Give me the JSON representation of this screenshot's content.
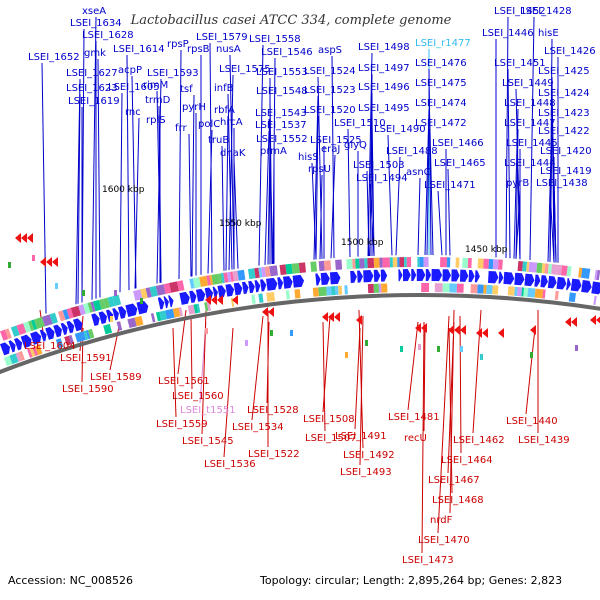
{
  "title": "Lactobacillus casei ATCC 334, complete genome",
  "footer": {
    "accession": "Accession: NC_008526",
    "topology": "Topology: circular; Length: 2,895,264 bp; Genes: 2,823"
  },
  "colors": {
    "forward_label": "#0000cc",
    "reverse_label": "#cc0000",
    "rna_forward_label": "#33bbee",
    "rna_reverse_label": "#dd88dd",
    "backbone": "#666666",
    "forward_arrow": "#1a1aff",
    "reverse_arrow": "#ee1111"
  },
  "ticks": [
    "1600 kbp",
    "1550 kbp",
    "1500 kbp",
    "1450 kbp"
  ],
  "forward_labels": [
    "xseA",
    "LSEI_1634",
    "LSEI_1628",
    "gmk",
    "LSEI_1652",
    "LSEI_1627",
    "LSEI_1623",
    "LSEI_1619",
    "LSEI_1614",
    "acpP",
    "rnc",
    "LSEI_1605",
    "rplS",
    "trmD",
    "rimM",
    "LSEI_1593",
    "rpsP",
    "rpsB",
    "LSEI_1579",
    "nusA",
    "LSEI_1575",
    "tsf",
    "pyrH",
    "frr",
    "infB",
    "polC",
    "rbfA",
    "hrcA",
    "truB",
    "dnaK",
    "LSEI_1558",
    "LSEI_1546",
    "LSEI_1553",
    "LSEI_1548",
    "LSEI_1543",
    "LSEI_1537",
    "LSEI_1552",
    "prmA",
    "aspS",
    "LSEI_1524",
    "LSEI_1523",
    "LSEI_1520",
    "LSEI_1525",
    "LSEI_1510",
    "hisS",
    "eraJ",
    "rpsU",
    "glyQ",
    "LSEI_1503",
    "LSEI_1494",
    "LSEI_1498",
    "LSEI_1497",
    "LSEI_1496",
    "LSEI_1495",
    "LSEI_1490",
    "LSEI_1488",
    "asnC",
    "LSEI_r1477",
    "LSEI_1476",
    "LSEI_1475",
    "LSEI_1474",
    "LSEI_1472",
    "LSEI_1466",
    "LSEI_1465",
    "LSEI_1471",
    "pyrB",
    "LSEI_1452",
    "LSEI_1446",
    "LSEI_1451",
    "LSEI_1449",
    "LSEI_1448",
    "LSEI_1447",
    "LSEI_1445",
    "LSEI_1444",
    "LSEI_1438",
    "LSEI_1428",
    "hisE",
    "LSEI_1426",
    "LSEI_1425",
    "LSEI_1424",
    "LSEI_1423",
    "LSEI_1422",
    "LSEI_1420",
    "LSEI_1419"
  ],
  "reverse_labels": [
    "LSEI_1604",
    "LSEI_1591",
    "LSEI_1589",
    "LSEI_1590",
    "LSEI_1561",
    "LSEI_1560",
    "LSEI_t1551",
    "LSEI_1559",
    "LSEI_1545",
    "LSEI_1534",
    "LSEI_1528",
    "LSEI_1536",
    "LSEI_1522",
    "LSEI_1508",
    "LSEI_1507",
    "LSEI_1491",
    "LSEI_1492",
    "LSEI_1493",
    "LSEI_1481",
    "recU",
    "LSEI_1462",
    "LSEI_1464",
    "LSEI_1467",
    "LSEI_1468",
    "nrdF",
    "LSEI_1470",
    "LSEI_1473",
    "LSEI_1440",
    "LSEI_1439"
  ]
}
